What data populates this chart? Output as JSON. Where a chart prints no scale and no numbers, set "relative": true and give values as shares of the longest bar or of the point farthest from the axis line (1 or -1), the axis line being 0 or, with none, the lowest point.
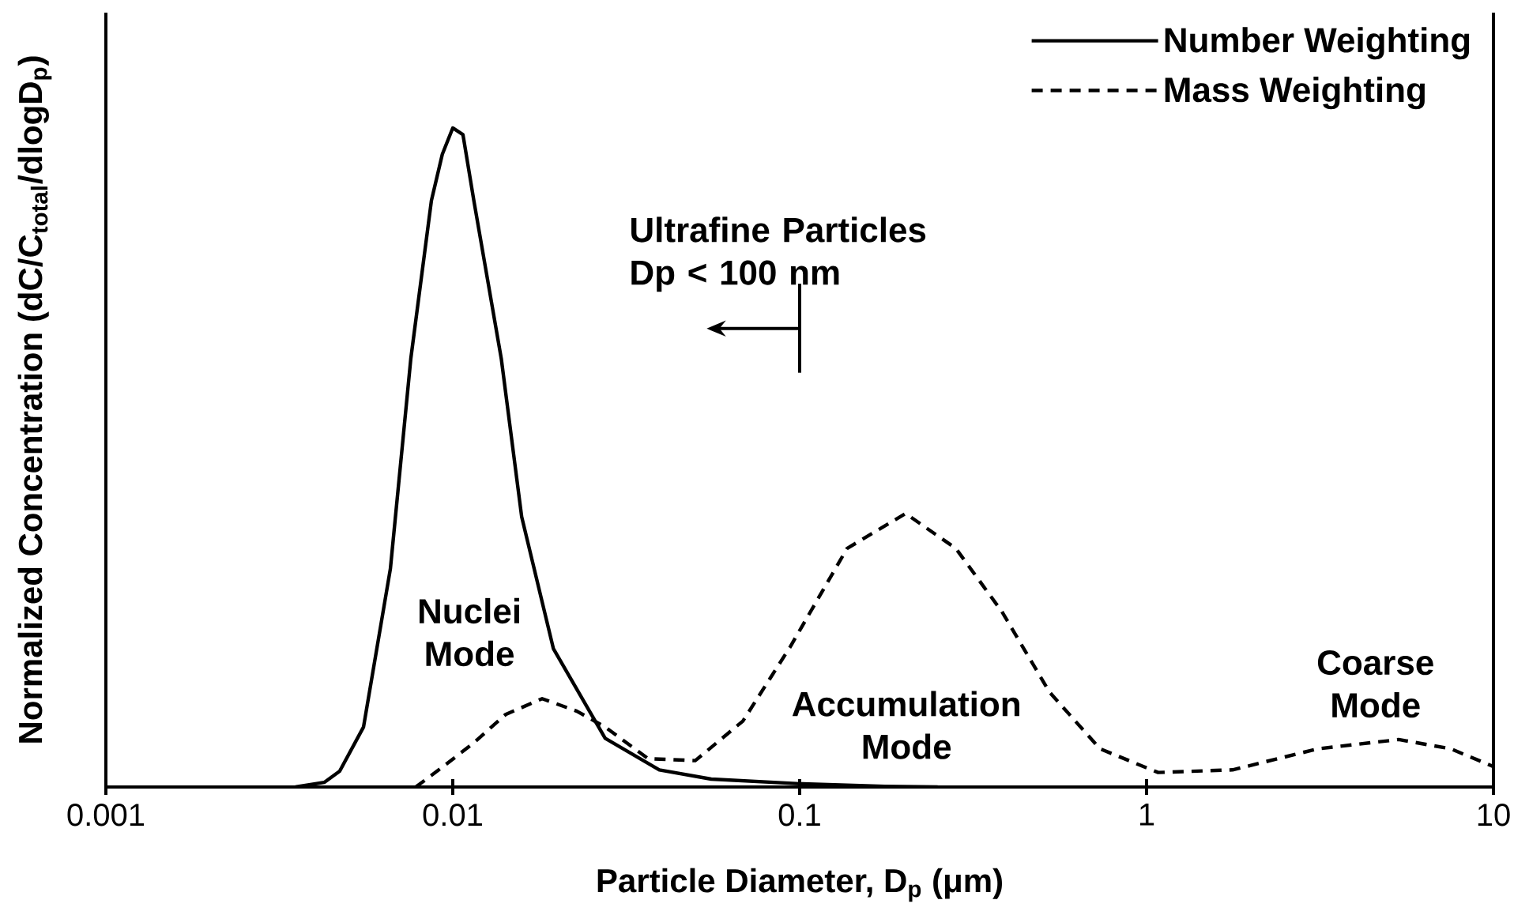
{
  "chart_data": {
    "type": "line",
    "relative": true,
    "log": "x",
    "xlabel": "Particle Diameter, D$_{p}$ (μm)",
    "ylabel": "Normalized Concentration (dC/C$_{total}$/dlogD$_{p}$)",
    "xlim": [
      0.001,
      10
    ],
    "xticks": [
      0.001,
      0.01,
      0.1,
      1,
      10
    ],
    "legend": "top right",
    "series": [
      {
        "name": "Number Weighting",
        "color": "#000000",
        "line_style": "solid",
        "x": [
          0.00352,
          0.00426,
          0.00472,
          0.00553,
          0.00661,
          0.00757,
          0.00868,
          0.00933,
          0.01,
          0.0107,
          0.0115,
          0.0138,
          0.0158,
          0.0195,
          0.0275,
          0.0394,
          0.0556,
          0.1,
          0.176,
          0.25
        ],
        "values": [
          0,
          0.007,
          0.024,
          0.091,
          0.331,
          0.65,
          0.89,
          0.96,
          1,
          0.99,
          0.89,
          0.65,
          0.41,
          0.21,
          0.074,
          0.026,
          0.012,
          0.005,
          0.001,
          0
        ]
      },
      {
        "name": "Mass Weighting",
        "color": "#000000",
        "line_style": "dashed",
        "x": [
          0.00782,
          0.00933,
          0.0115,
          0.0142,
          0.0181,
          0.0228,
          0.0275,
          0.0366,
          0.05,
          0.0686,
          0.094,
          0.137,
          0.202,
          0.282,
          0.383,
          0.525,
          0.734,
          1.08,
          1.77,
          3.12,
          5.33,
          7.53,
          10
        ],
        "values": [
          0,
          0.03,
          0.067,
          0.11,
          0.134,
          0.115,
          0.091,
          0.043,
          0.04,
          0.1,
          0.213,
          0.362,
          0.415,
          0.362,
          0.266,
          0.144,
          0.058,
          0.022,
          0.026,
          0.058,
          0.072,
          0.058,
          0.031
        ]
      }
    ],
    "annotations": [
      "Ultrafine Particles Dp < 100 nm",
      "Nuclei Mode",
      "Accumulation Mode",
      "Coarse Mode"
    ]
  }
}
